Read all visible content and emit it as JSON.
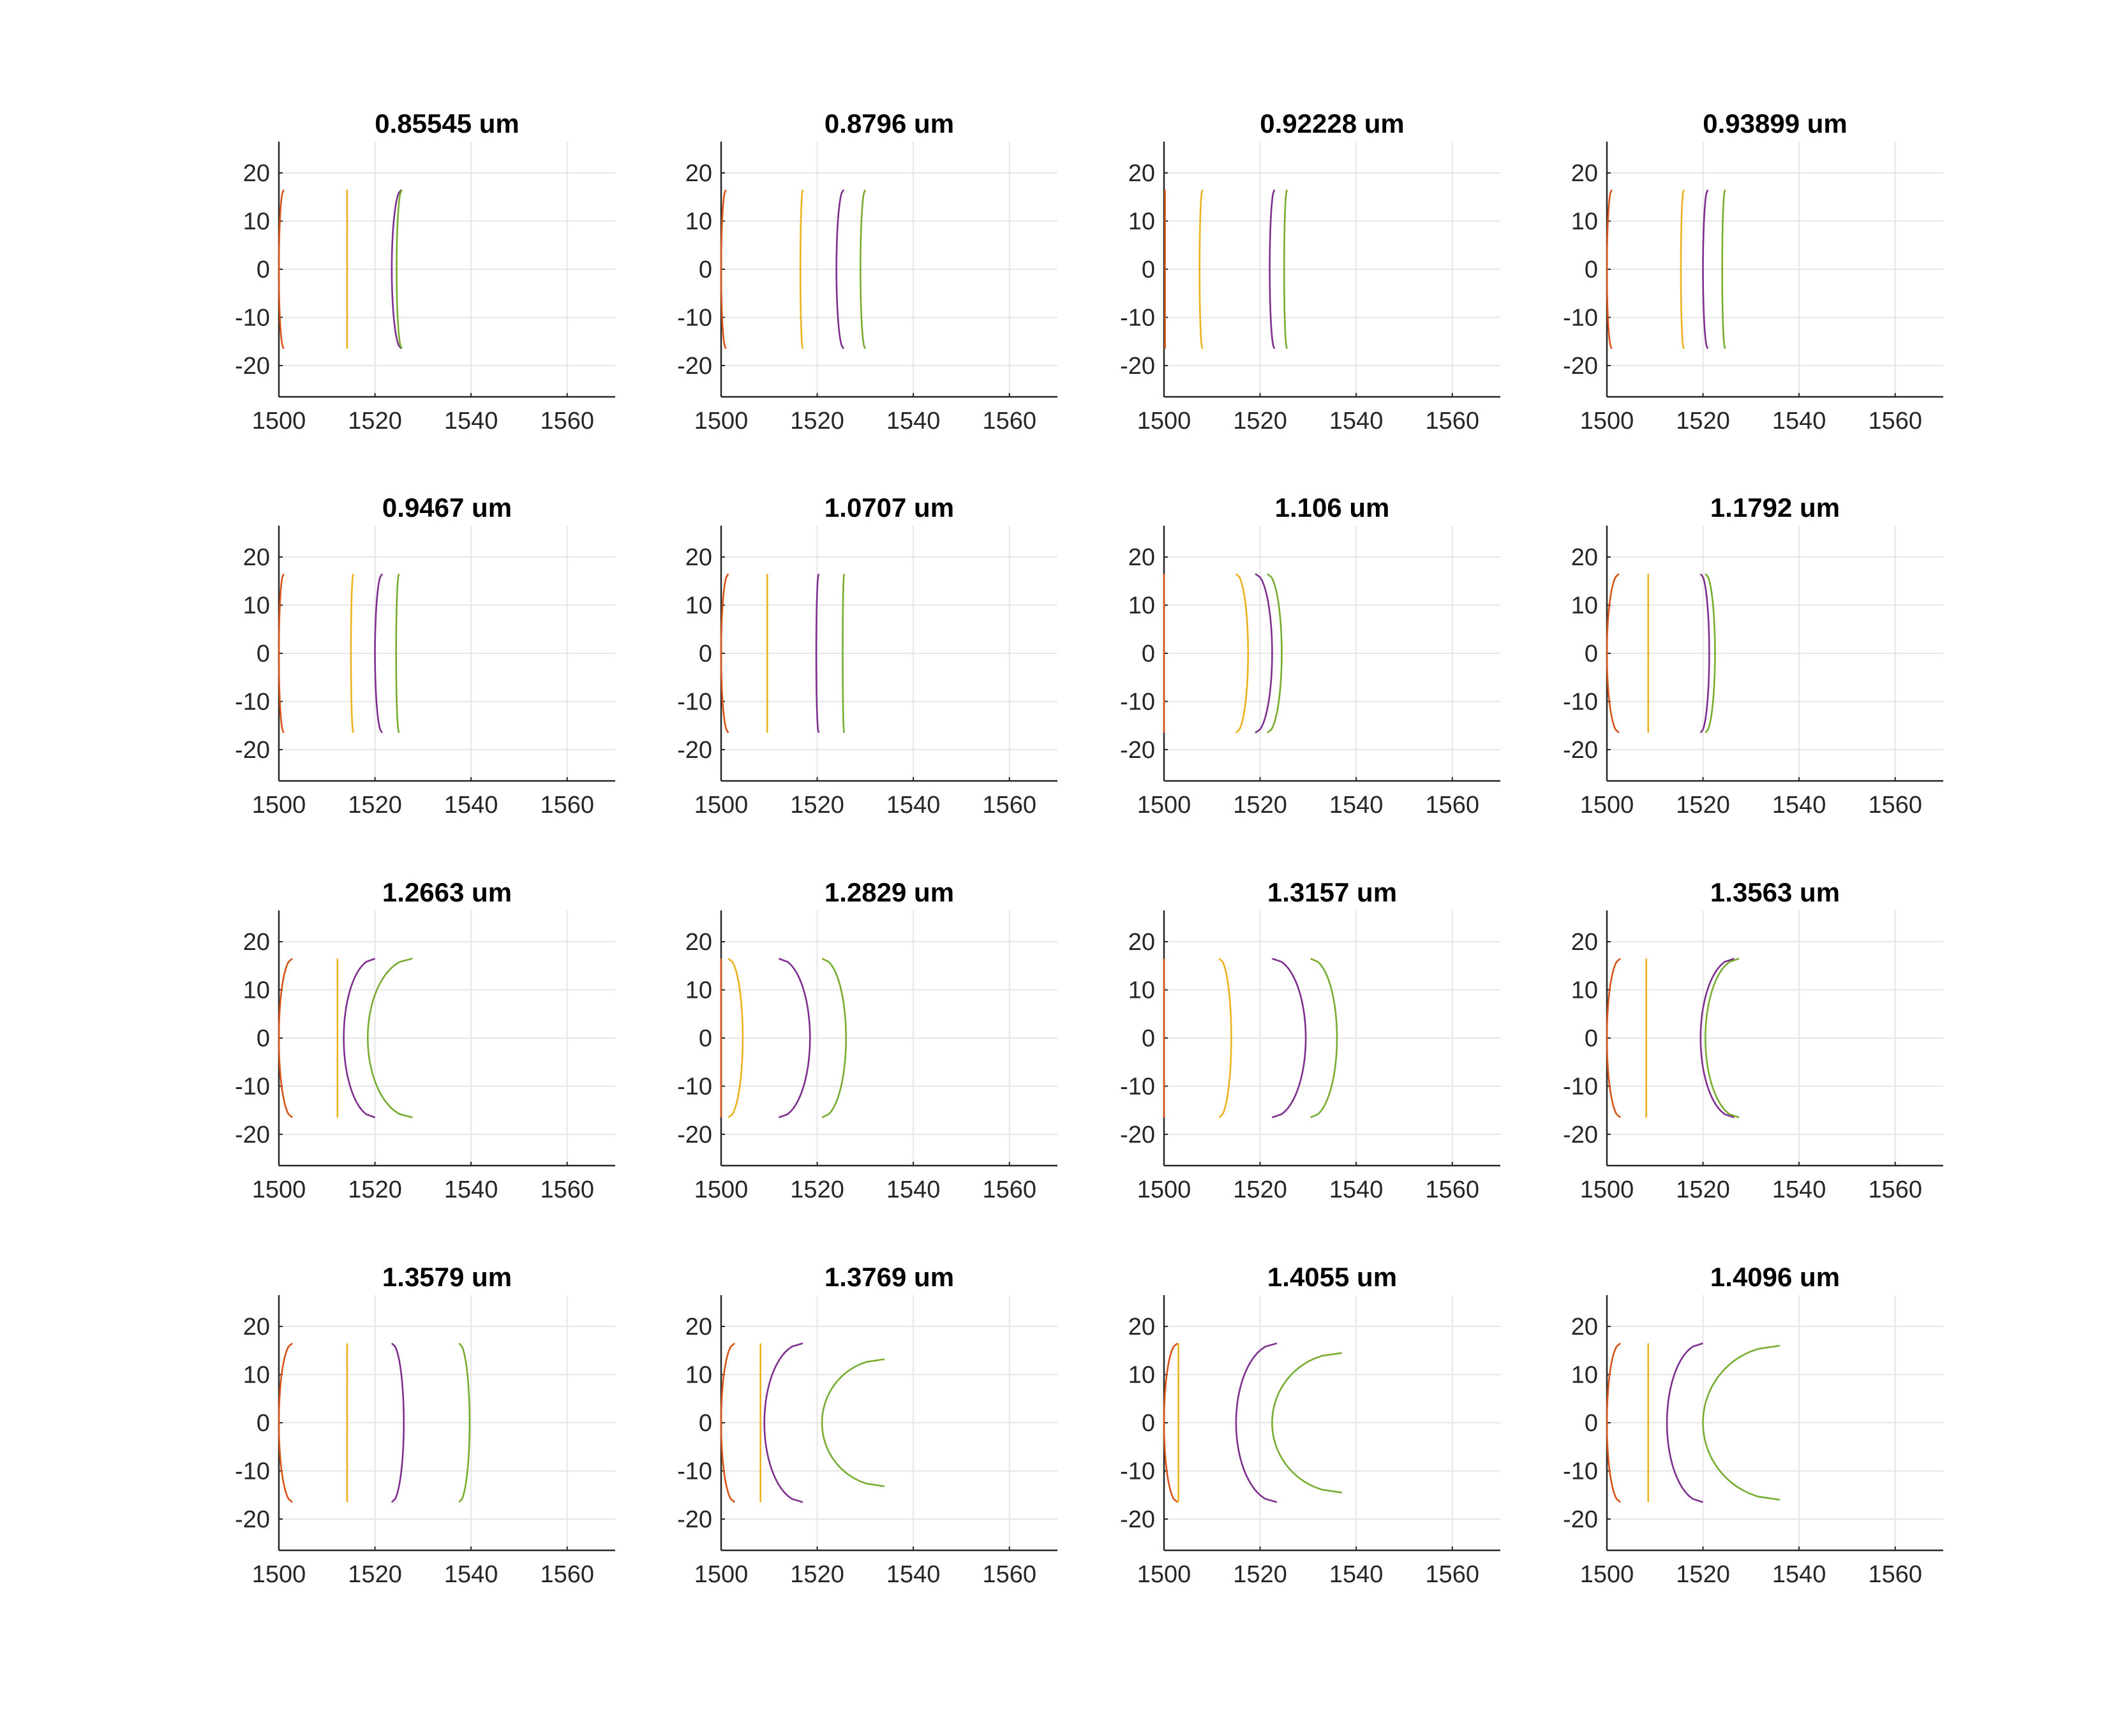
{
  "figure": {
    "background": "#ffffff",
    "grid_color": "#e6e6e6",
    "axis_color": "#262626"
  },
  "chart_data": [
    {
      "type": "line",
      "title": "0.85545 um",
      "xlim": [
        1500,
        1570
      ],
      "ylim": [
        -26.5,
        26.5
      ],
      "grid": true,
      "xticks": [
        "1500",
        "1520",
        "1540",
        "1560"
      ],
      "yticks": [
        "20",
        "10",
        "0",
        "-10",
        "-20"
      ],
      "series": [
        {
          "color": "#D95319",
          "vertex_x": 1500.0,
          "edge_x": 1501.0,
          "half_height": 16.5
        },
        {
          "color": "#EDB120",
          "vertex_x": 1514.2,
          "edge_x": 1514.2,
          "half_height": 16.5
        },
        {
          "color": "#7E2F8E",
          "vertex_x": 1523.5,
          "edge_x": 1525.5,
          "half_height": 16.5
        },
        {
          "color": "#77AC30",
          "vertex_x": 1524.5,
          "edge_x": 1525.6,
          "half_height": 16.5
        }
      ]
    },
    {
      "type": "line",
      "title": "0.8796 um",
      "xlim": [
        1500,
        1570
      ],
      "ylim": [
        -26.5,
        26.5
      ],
      "grid": true,
      "xticks": [
        "1500",
        "1520",
        "1540",
        "1560"
      ],
      "yticks": [
        "20",
        "10",
        "0",
        "-10",
        "-20"
      ],
      "series": [
        {
          "color": "#D95319",
          "vertex_x": 1500.0,
          "edge_x": 1501.0,
          "half_height": 16.5
        },
        {
          "color": "#EDB120",
          "vertex_x": 1516.5,
          "edge_x": 1517.0,
          "half_height": 16.5
        },
        {
          "color": "#7E2F8E",
          "vertex_x": 1524.0,
          "edge_x": 1525.5,
          "half_height": 16.5
        },
        {
          "color": "#77AC30",
          "vertex_x": 1529.0,
          "edge_x": 1530.0,
          "half_height": 16.5
        }
      ]
    },
    {
      "type": "line",
      "title": "0.92228 um",
      "xlim": [
        1500,
        1570
      ],
      "ylim": [
        -26.5,
        26.5
      ],
      "grid": true,
      "xticks": [
        "1500",
        "1520",
        "1540",
        "1560"
      ],
      "yticks": [
        "20",
        "10",
        "0",
        "-10",
        "-20"
      ],
      "series": [
        {
          "color": "#D95319",
          "vertex_x": 1500.2,
          "edge_x": 1500.2,
          "half_height": 16.5
        },
        {
          "color": "#EDB120",
          "vertex_x": 1507.4,
          "edge_x": 1508.0,
          "half_height": 16.5
        },
        {
          "color": "#7E2F8E",
          "vertex_x": 1522.0,
          "edge_x": 1523.0,
          "half_height": 16.5
        },
        {
          "color": "#77AC30",
          "vertex_x": 1525.0,
          "edge_x": 1525.6,
          "half_height": 16.5
        }
      ]
    },
    {
      "type": "line",
      "title": "0.93899 um",
      "xlim": [
        1500,
        1570
      ],
      "ylim": [
        -26.5,
        26.5
      ],
      "grid": true,
      "xticks": [
        "1500",
        "1520",
        "1540",
        "1560"
      ],
      "yticks": [
        "20",
        "10",
        "0",
        "-10",
        "-20"
      ],
      "series": [
        {
          "color": "#D95319",
          "vertex_x": 1500.0,
          "edge_x": 1501.0,
          "half_height": 16.5
        },
        {
          "color": "#EDB120",
          "vertex_x": 1515.4,
          "edge_x": 1516.0,
          "half_height": 16.5
        },
        {
          "color": "#7E2F8E",
          "vertex_x": 1520.0,
          "edge_x": 1521.0,
          "half_height": 16.5
        },
        {
          "color": "#77AC30",
          "vertex_x": 1524.0,
          "edge_x": 1524.6,
          "half_height": 16.5
        }
      ]
    },
    {
      "type": "line",
      "title": "0.9467 um",
      "xlim": [
        1500,
        1570
      ],
      "ylim": [
        -26.5,
        26.5
      ],
      "grid": true,
      "xticks": [
        "1500",
        "1520",
        "1540",
        "1560"
      ],
      "yticks": [
        "20",
        "10",
        "0",
        "-10",
        "-20"
      ],
      "series": [
        {
          "color": "#D95319",
          "vertex_x": 1500.0,
          "edge_x": 1501.0,
          "half_height": 16.5
        },
        {
          "color": "#EDB120",
          "vertex_x": 1515.0,
          "edge_x": 1515.5,
          "half_height": 16.5
        },
        {
          "color": "#7E2F8E",
          "vertex_x": 1520.0,
          "edge_x": 1521.5,
          "half_height": 16.5
        },
        {
          "color": "#77AC30",
          "vertex_x": 1524.4,
          "edge_x": 1525.0,
          "half_height": 16.5
        }
      ]
    },
    {
      "type": "line",
      "title": "1.0707 um",
      "xlim": [
        1500,
        1570
      ],
      "ylim": [
        -26.5,
        26.5
      ],
      "grid": true,
      "xticks": [
        "1500",
        "1520",
        "1540",
        "1560"
      ],
      "yticks": [
        "20",
        "10",
        "0",
        "-10",
        "-20"
      ],
      "series": [
        {
          "color": "#D95319",
          "vertex_x": 1500.0,
          "edge_x": 1501.5,
          "half_height": 16.5
        },
        {
          "color": "#EDB120",
          "vertex_x": 1509.6,
          "edge_x": 1509.6,
          "half_height": 16.5
        },
        {
          "color": "#7E2F8E",
          "vertex_x": 1519.8,
          "edge_x": 1520.3,
          "half_height": 16.5
        },
        {
          "color": "#77AC30",
          "vertex_x": 1525.3,
          "edge_x": 1525.6,
          "half_height": 16.5
        }
      ]
    },
    {
      "type": "line",
      "title": "1.106 um",
      "xlim": [
        1500,
        1570
      ],
      "ylim": [
        -26.5,
        26.5
      ],
      "grid": true,
      "xticks": [
        "1500",
        "1520",
        "1540",
        "1560"
      ],
      "yticks": [
        "20",
        "10",
        "0",
        "-10",
        "-20"
      ],
      "series": [
        {
          "color": "#D95319",
          "vertex_x": 1500.0,
          "edge_x": 1500.0,
          "half_height": 16.5
        },
        {
          "color": "#EDB120",
          "vertex_x": 1517.5,
          "edge_x": 1515.0,
          "half_height": 16.5
        },
        {
          "color": "#7E2F8E",
          "vertex_x": 1522.5,
          "edge_x": 1519.0,
          "half_height": 16.5
        },
        {
          "color": "#77AC30",
          "vertex_x": 1524.5,
          "edge_x": 1521.5,
          "half_height": 16.5
        }
      ]
    },
    {
      "type": "line",
      "title": "1.1792 um",
      "xlim": [
        1500,
        1570
      ],
      "ylim": [
        -26.5,
        26.5
      ],
      "grid": true,
      "xticks": [
        "1500",
        "1520",
        "1540",
        "1560"
      ],
      "yticks": [
        "20",
        "10",
        "0",
        "-10",
        "-20"
      ],
      "series": [
        {
          "color": "#D95319",
          "vertex_x": 1500.0,
          "edge_x": 1502.5,
          "half_height": 16.5
        },
        {
          "color": "#EDB120",
          "vertex_x": 1508.6,
          "edge_x": 1508.6,
          "half_height": 16.5
        },
        {
          "color": "#7E2F8E",
          "vertex_x": 1521.3,
          "edge_x": 1519.5,
          "half_height": 16.5
        },
        {
          "color": "#77AC30",
          "vertex_x": 1522.5,
          "edge_x": 1520.5,
          "half_height": 16.5
        }
      ]
    },
    {
      "type": "line",
      "title": "1.2663 um",
      "xlim": [
        1500,
        1570
      ],
      "ylim": [
        -26.5,
        26.5
      ],
      "grid": true,
      "xticks": [
        "1500",
        "1520",
        "1540",
        "1560"
      ],
      "yticks": [
        "20",
        "10",
        "0",
        "-10",
        "-20"
      ],
      "series": [
        {
          "color": "#D95319",
          "vertex_x": 1500.0,
          "edge_x": 1502.8,
          "half_height": 16.5
        },
        {
          "color": "#EDB120",
          "vertex_x": 1512.2,
          "edge_x": 1512.2,
          "half_height": 16.5
        },
        {
          "color": "#7E2F8E",
          "vertex_x": 1513.5,
          "edge_x": 1520.0,
          "half_height": 16.5
        },
        {
          "color": "#77AC30",
          "vertex_x": 1518.5,
          "edge_x": 1527.8,
          "half_height": 16.5
        }
      ]
    },
    {
      "type": "line",
      "title": "1.2829 um",
      "xlim": [
        1500,
        1570
      ],
      "ylim": [
        -26.5,
        26.5
      ],
      "grid": true,
      "xticks": [
        "1500",
        "1520",
        "1540",
        "1560"
      ],
      "yticks": [
        "20",
        "10",
        "0",
        "-10",
        "-20"
      ],
      "series": [
        {
          "color": "#D95319",
          "vertex_x": 1500.0,
          "edge_x": 1500.0,
          "half_height": 16.5
        },
        {
          "color": "#EDB120",
          "vertex_x": 1504.5,
          "edge_x": 1501.5,
          "half_height": 16.5
        },
        {
          "color": "#7E2F8E",
          "vertex_x": 1518.5,
          "edge_x": 1512.0,
          "half_height": 16.5
        },
        {
          "color": "#77AC30",
          "vertex_x": 1526.0,
          "edge_x": 1521.0,
          "half_height": 16.5
        }
      ]
    },
    {
      "type": "line",
      "title": "1.3157 um",
      "xlim": [
        1500,
        1570
      ],
      "ylim": [
        -26.5,
        26.5
      ],
      "grid": true,
      "xticks": [
        "1500",
        "1520",
        "1540",
        "1560"
      ],
      "yticks": [
        "20",
        "10",
        "0",
        "-10",
        "-20"
      ],
      "series": [
        {
          "color": "#D95319",
          "vertex_x": 1500.0,
          "edge_x": 1500.0,
          "half_height": 16.5
        },
        {
          "color": "#EDB120",
          "vertex_x": 1514.0,
          "edge_x": 1511.5,
          "half_height": 16.5
        },
        {
          "color": "#7E2F8E",
          "vertex_x": 1529.5,
          "edge_x": 1522.5,
          "half_height": 16.5
        },
        {
          "color": "#77AC30",
          "vertex_x": 1536.0,
          "edge_x": 1530.5,
          "half_height": 16.5
        }
      ]
    },
    {
      "type": "line",
      "title": "1.3563 um",
      "xlim": [
        1500,
        1570
      ],
      "ylim": [
        -26.5,
        26.5
      ],
      "grid": true,
      "xticks": [
        "1500",
        "1520",
        "1540",
        "1560"
      ],
      "yticks": [
        "20",
        "10",
        "0",
        "-10",
        "-20"
      ],
      "series": [
        {
          "color": "#D95319",
          "vertex_x": 1500.0,
          "edge_x": 1502.8,
          "half_height": 16.5
        },
        {
          "color": "#EDB120",
          "vertex_x": 1508.2,
          "edge_x": 1508.2,
          "half_height": 16.5
        },
        {
          "color": "#7E2F8E",
          "vertex_x": 1519.5,
          "edge_x": 1526.5,
          "half_height": 16.5
        },
        {
          "color": "#77AC30",
          "vertex_x": 1520.5,
          "edge_x": 1527.5,
          "half_height": 16.5
        }
      ]
    },
    {
      "type": "line",
      "title": "1.3579 um",
      "xlim": [
        1500,
        1570
      ],
      "ylim": [
        -26.5,
        26.5
      ],
      "grid": true,
      "xticks": [
        "1500",
        "1520",
        "1540",
        "1560"
      ],
      "yticks": [
        "20",
        "10",
        "0",
        "-10",
        "-20"
      ],
      "series": [
        {
          "color": "#D95319",
          "vertex_x": 1500.0,
          "edge_x": 1502.8,
          "half_height": 16.5
        },
        {
          "color": "#EDB120",
          "vertex_x": 1514.2,
          "edge_x": 1514.2,
          "half_height": 16.5
        },
        {
          "color": "#7E2F8E",
          "vertex_x": 1526.0,
          "edge_x": 1523.5,
          "half_height": 16.5
        },
        {
          "color": "#77AC30",
          "vertex_x": 1539.7,
          "edge_x": 1537.5,
          "half_height": 16.5
        }
      ]
    },
    {
      "type": "line",
      "title": "1.3769 um",
      "xlim": [
        1500,
        1570
      ],
      "ylim": [
        -26.5,
        26.5
      ],
      "grid": true,
      "xticks": [
        "1500",
        "1520",
        "1540",
        "1560"
      ],
      "yticks": [
        "20",
        "10",
        "0",
        "-10",
        "-20"
      ],
      "series": [
        {
          "color": "#D95319",
          "vertex_x": 1500.0,
          "edge_x": 1502.8,
          "half_height": 16.5
        },
        {
          "color": "#EDB120",
          "vertex_x": 1508.2,
          "edge_x": 1508.2,
          "half_height": 16.5
        },
        {
          "color": "#7E2F8E",
          "vertex_x": 1509.0,
          "edge_x": 1517.0,
          "half_height": 16.5
        },
        {
          "color": "#77AC30",
          "vertex_x": 1521.0,
          "edge_x": 1534.0,
          "half_height": 13.2
        }
      ]
    },
    {
      "type": "line",
      "title": "1.4055 um",
      "xlim": [
        1500,
        1570
      ],
      "ylim": [
        -26.5,
        26.5
      ],
      "grid": true,
      "xticks": [
        "1500",
        "1520",
        "1540",
        "1560"
      ],
      "yticks": [
        "20",
        "10",
        "0",
        "-10",
        "-20"
      ],
      "series": [
        {
          "color": "#D95319",
          "vertex_x": 1500.0,
          "edge_x": 1502.8,
          "half_height": 16.5
        },
        {
          "color": "#EDB120",
          "vertex_x": 1503.0,
          "edge_x": 1503.0,
          "half_height": 16.5
        },
        {
          "color": "#7E2F8E",
          "vertex_x": 1515.0,
          "edge_x": 1523.5,
          "half_height": 16.5
        },
        {
          "color": "#77AC30",
          "vertex_x": 1522.5,
          "edge_x": 1537.0,
          "half_height": 14.5
        }
      ]
    },
    {
      "type": "line",
      "title": "1.4096 um",
      "xlim": [
        1500,
        1570
      ],
      "ylim": [
        -26.5,
        26.5
      ],
      "grid": true,
      "xticks": [
        "1500",
        "1520",
        "1540",
        "1560"
      ],
      "yticks": [
        "20",
        "10",
        "0",
        "-10",
        "-20"
      ],
      "series": [
        {
          "color": "#D95319",
          "vertex_x": 1500.0,
          "edge_x": 1502.8,
          "half_height": 16.5
        },
        {
          "color": "#EDB120",
          "vertex_x": 1508.6,
          "edge_x": 1508.6,
          "half_height": 16.5
        },
        {
          "color": "#7E2F8E",
          "vertex_x": 1512.5,
          "edge_x": 1520.0,
          "half_height": 16.5
        },
        {
          "color": "#77AC30",
          "vertex_x": 1520.0,
          "edge_x": 1536.0,
          "half_height": 16.0
        }
      ]
    }
  ]
}
